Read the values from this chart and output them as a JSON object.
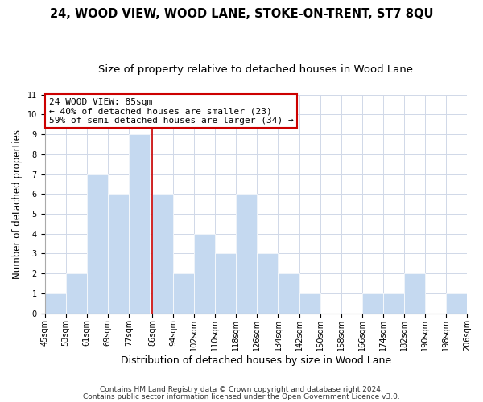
{
  "title": "24, WOOD VIEW, WOOD LANE, STOKE-ON-TRENT, ST7 8QU",
  "subtitle": "Size of property relative to detached houses in Wood Lane",
  "xlabel": "Distribution of detached houses by size in Wood Lane",
  "ylabel": "Number of detached properties",
  "footer_line1": "Contains HM Land Registry data © Crown copyright and database right 2024.",
  "footer_line2": "Contains public sector information licensed under the Open Government Licence v3.0.",
  "bin_labels": [
    "45sqm",
    "53sqm",
    "61sqm",
    "69sqm",
    "77sqm",
    "86sqm",
    "94sqm",
    "102sqm",
    "110sqm",
    "118sqm",
    "126sqm",
    "134sqm",
    "142sqm",
    "150sqm",
    "158sqm",
    "166sqm",
    "174sqm",
    "182sqm",
    "190sqm",
    "198sqm",
    "206sqm"
  ],
  "bin_edges": [
    45,
    53,
    61,
    69,
    77,
    86,
    94,
    102,
    110,
    118,
    126,
    134,
    142,
    150,
    158,
    166,
    174,
    182,
    190,
    198,
    206
  ],
  "counts": [
    1,
    2,
    7,
    6,
    9,
    6,
    2,
    4,
    3,
    6,
    3,
    2,
    1,
    0,
    0,
    1,
    1,
    2,
    0,
    1
  ],
  "bar_color": "#c5d9f0",
  "bar_edge_color": "#ffffff",
  "reference_line_x": 86,
  "reference_line_color": "#cc0000",
  "annotation_title": "24 WOOD VIEW: 85sqm",
  "annotation_line1": "← 40% of detached houses are smaller (23)",
  "annotation_line2": "59% of semi-detached houses are larger (34) →",
  "annotation_box_color": "#ffffff",
  "annotation_box_edge_color": "#cc0000",
  "ylim": [
    0,
    11
  ],
  "yticks": [
    0,
    1,
    2,
    3,
    4,
    5,
    6,
    7,
    8,
    9,
    10,
    11
  ],
  "grid_color": "#d0d8e8",
  "background_color": "#ffffff",
  "title_fontsize": 10.5,
  "subtitle_fontsize": 9.5,
  "xlabel_fontsize": 9,
  "ylabel_fontsize": 8.5,
  "tick_fontsize": 7,
  "annotation_fontsize": 8,
  "footer_fontsize": 6.5
}
